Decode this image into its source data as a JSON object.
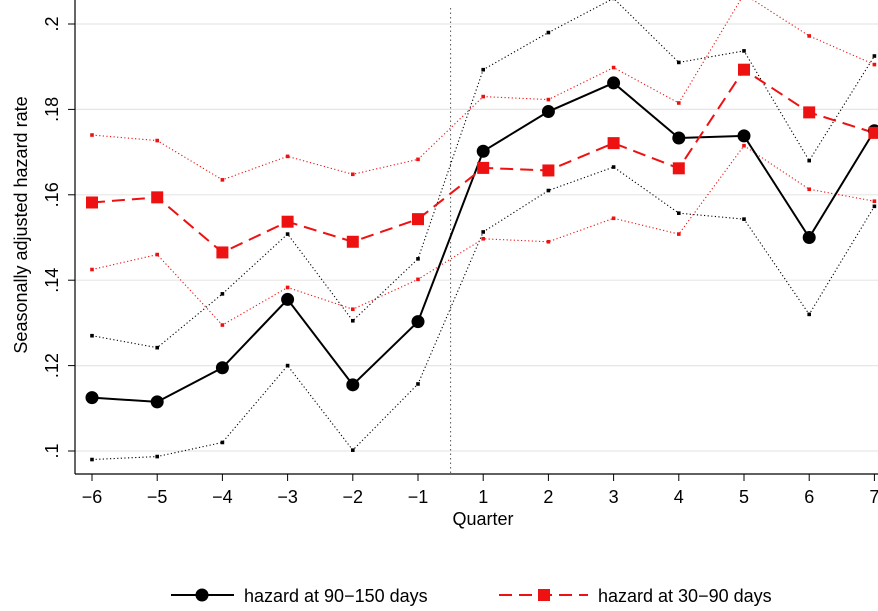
{
  "chart_data": {
    "type": "line",
    "xlabel": "Quarter",
    "ylabel": "Seasonally adjusted hazard rate",
    "categories": [
      "−6",
      "−5",
      "−4",
      "−3",
      "−2",
      "−1",
      "1",
      "2",
      "3",
      "4",
      "5",
      "6",
      "7"
    ],
    "ylim": [
      0.1,
      0.2
    ],
    "yticks": [
      {
        "value": 0.1,
        "label": ".1"
      },
      {
        "value": 0.12,
        "label": ".12"
      },
      {
        "value": 0.14,
        "label": ".14"
      },
      {
        "value": 0.16,
        "label": ".16"
      },
      {
        "value": 0.18,
        "label": ".18"
      },
      {
        "value": 0.2,
        "label": ".2"
      }
    ],
    "grid": true,
    "vertical_reference_line_between": [
      "−1",
      "1"
    ],
    "legend_position": "bottom",
    "series": [
      {
        "name": "hazard at 90−150 days",
        "color": "#000000",
        "marker": "circle",
        "values": [
          0.1125,
          0.1115,
          0.1195,
          0.1355,
          0.1155,
          0.1303,
          0.1702,
          0.1795,
          0.1862,
          0.1733,
          0.1738,
          0.15,
          0.175
        ],
        "ci_upper": [
          0.127,
          0.1242,
          0.1368,
          0.1508,
          0.1305,
          0.145,
          0.1893,
          0.198,
          0.206,
          0.191,
          0.1937,
          0.168,
          0.1925
        ],
        "ci_lower": [
          0.098,
          0.0987,
          0.102,
          0.12,
          0.1002,
          0.1157,
          0.1513,
          0.161,
          0.1665,
          0.1557,
          0.1543,
          0.132,
          0.1573
        ]
      },
      {
        "name": "hazard at 30−90 days",
        "color": "#ee1111",
        "marker": "square",
        "values": [
          0.1582,
          0.1594,
          0.1465,
          0.1537,
          0.149,
          0.1543,
          0.1663,
          0.1657,
          0.1721,
          0.1662,
          0.1893,
          0.1793,
          0.1745
        ],
        "ci_upper": [
          0.174,
          0.1727,
          0.1635,
          0.169,
          0.1648,
          0.1683,
          0.183,
          0.1823,
          0.1898,
          0.1815,
          0.207,
          0.1972,
          0.1905
        ],
        "ci_lower": [
          0.1425,
          0.146,
          0.1295,
          0.1383,
          0.1332,
          0.1402,
          0.1497,
          0.149,
          0.1545,
          0.1508,
          0.1715,
          0.1613,
          0.1585
        ]
      }
    ]
  }
}
